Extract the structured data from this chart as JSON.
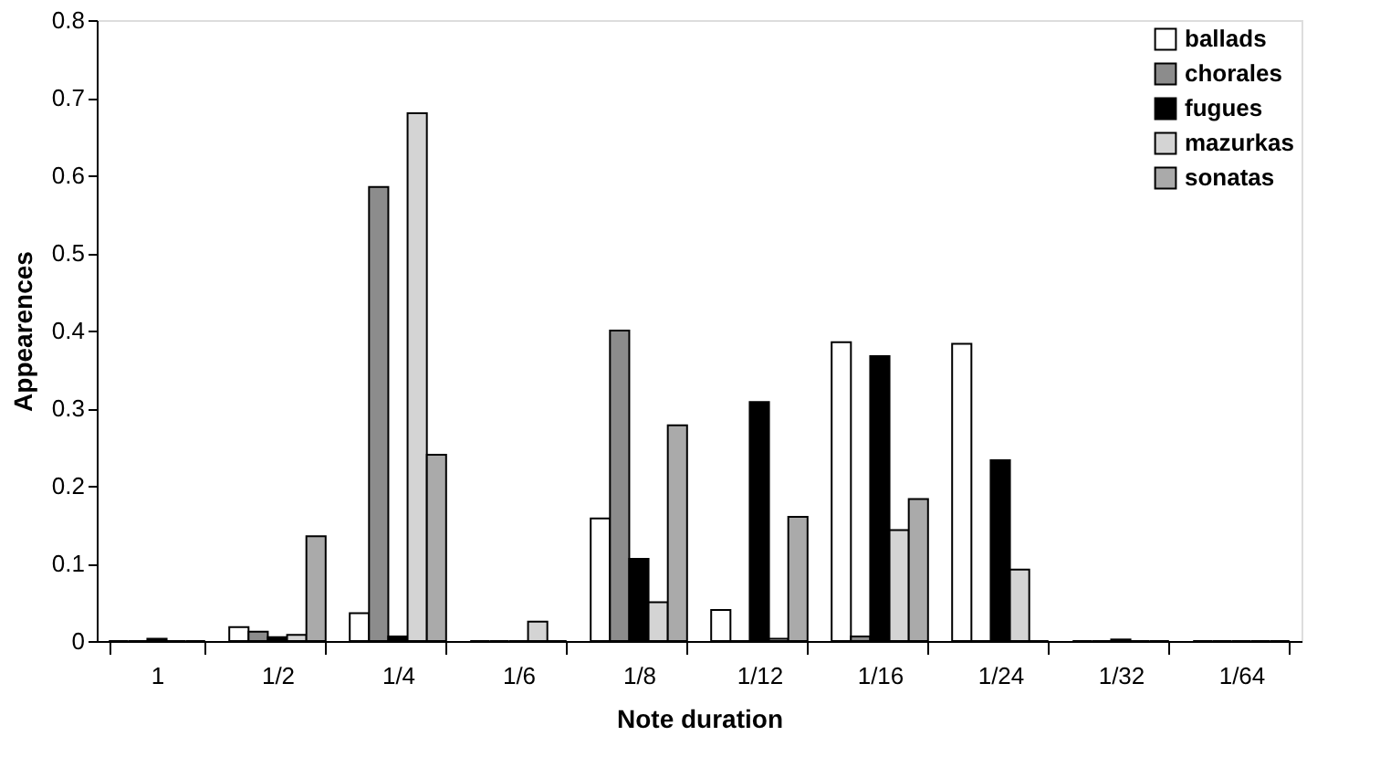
{
  "chart_data": {
    "type": "bar",
    "xlabel": "Note duration",
    "ylabel": "Appearences",
    "categories": [
      "1",
      "1/2",
      "1/4",
      "1/6",
      "1/8",
      "1/12",
      "1/16",
      "1/24",
      "1/32",
      "1/64"
    ],
    "series": [
      {
        "name": "ballads",
        "color": "#ffffff",
        "values": [
          0,
          0.018,
          0.036,
          0,
          0.158,
          0.04,
          0.385,
          0.383,
          0,
          0
        ]
      },
      {
        "name": "chorales",
        "color": "#8c8c8c",
        "values": [
          0,
          0.012,
          0.585,
          0,
          0.4,
          0,
          0.006,
          0,
          0,
          0
        ]
      },
      {
        "name": "fugues",
        "color": "#000000",
        "values": [
          0.003,
          0.005,
          0.006,
          0,
          0.106,
          0.308,
          0.367,
          0.233,
          0.002,
          0
        ]
      },
      {
        "name": "mazurkas",
        "color": "#d4d4d4",
        "values": [
          0,
          0.008,
          0.68,
          0.025,
          0.05,
          0.003,
          0.143,
          0.092,
          0,
          0
        ]
      },
      {
        "name": "sonatas",
        "color": "#aaaaaa",
        "values": [
          0,
          0.135,
          0.24,
          0,
          0.278,
          0.16,
          0.183,
          0,
          0,
          0
        ]
      }
    ],
    "ylim": [
      0,
      0.8
    ],
    "yticks": [
      0,
      0.1,
      0.2,
      0.3,
      0.4,
      0.5,
      0.6,
      0.7,
      0.8
    ],
    "grid": false,
    "legend": "top right"
  }
}
